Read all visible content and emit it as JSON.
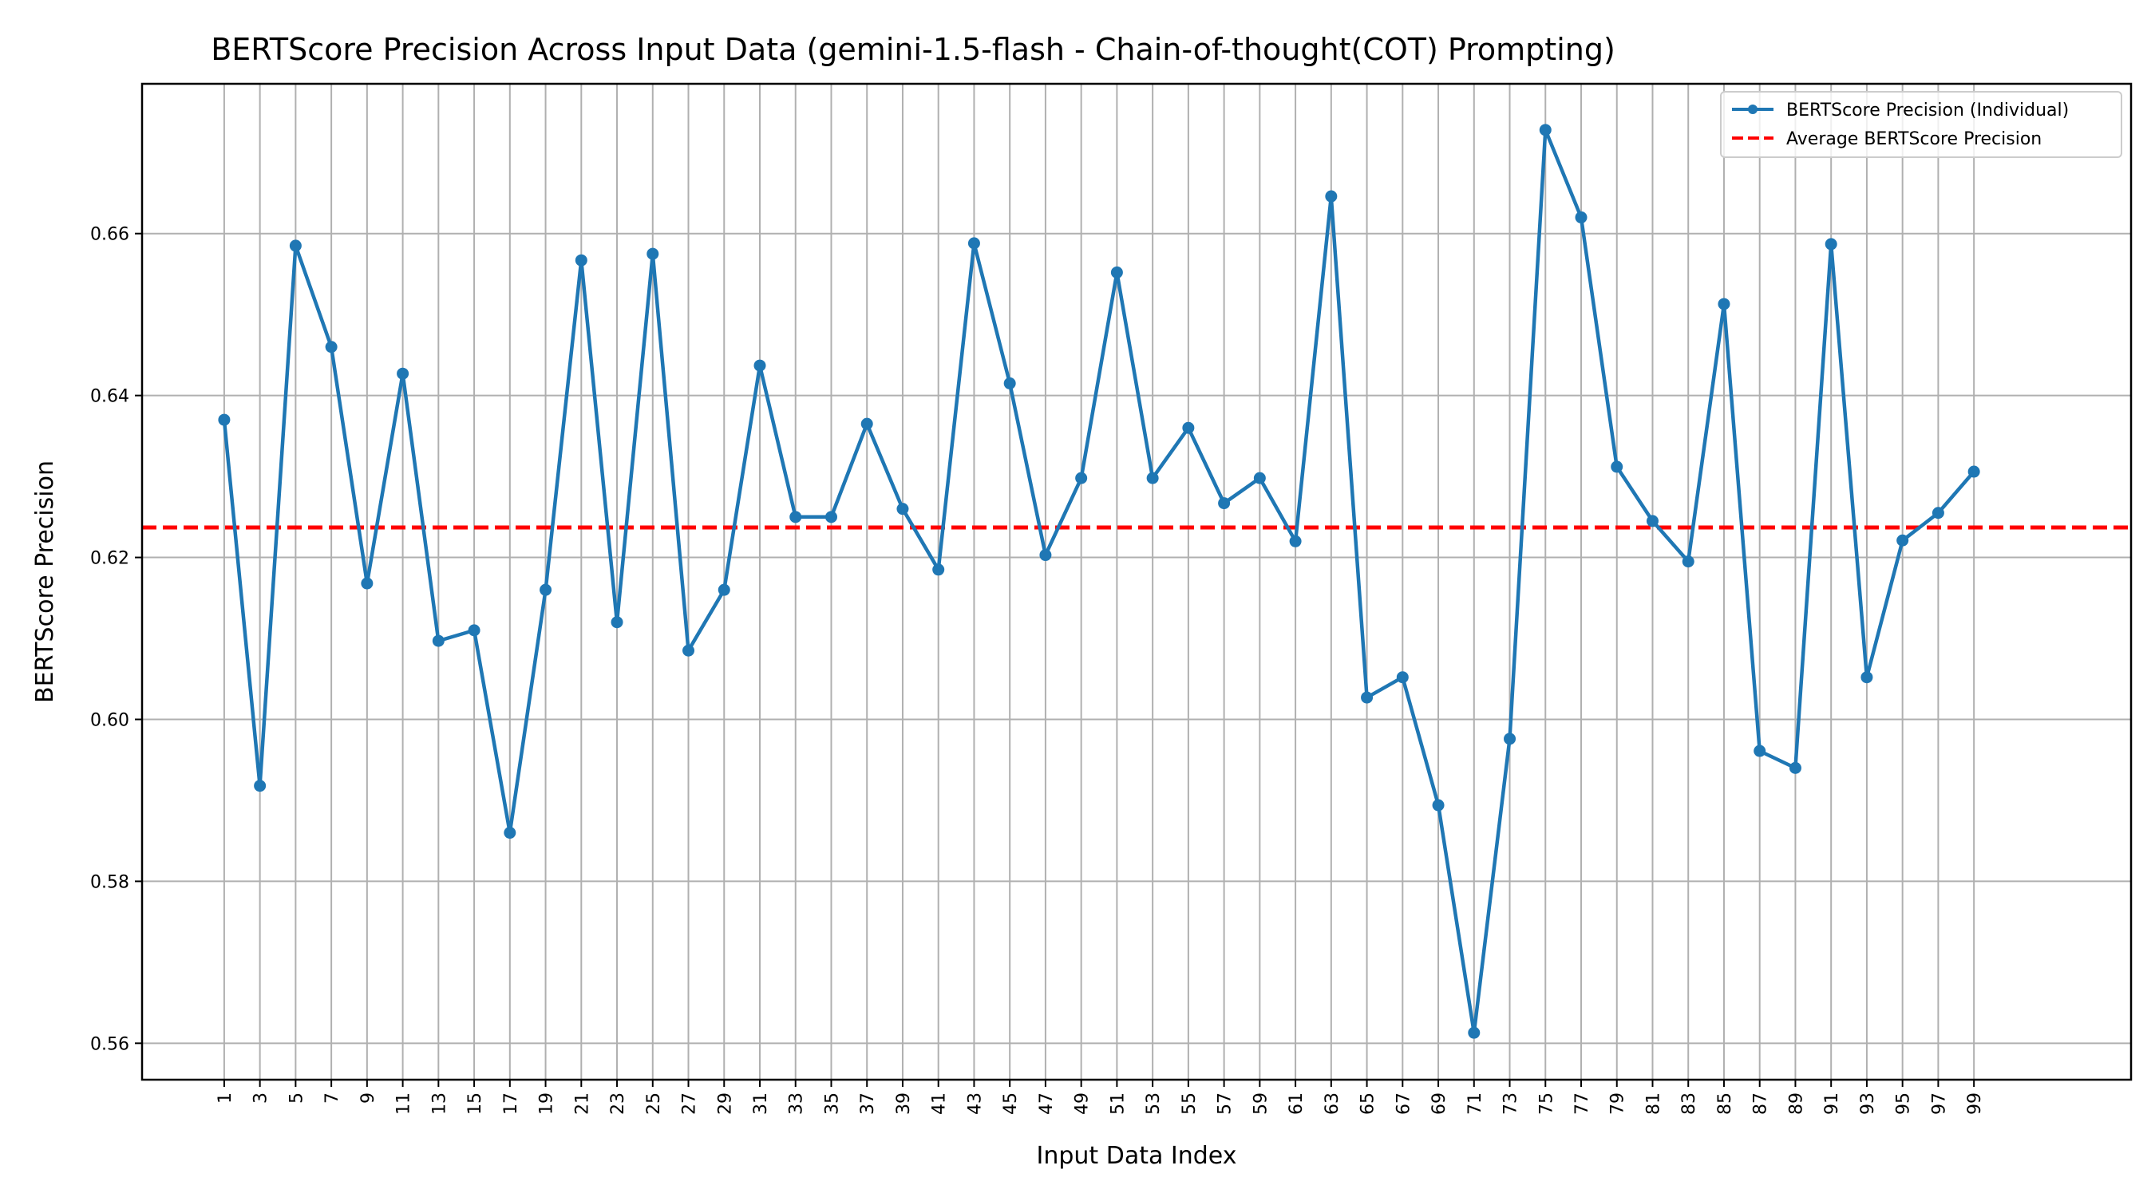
{
  "chart_data": {
    "type": "line",
    "title": "BERTScore Precision Across Input Data (gemini-1.5-flash - Chain-of-thought(COT) Prompting)",
    "xlabel": "Input Data Index",
    "ylabel": "BERTScore Precision",
    "x": [
      1,
      3,
      5,
      7,
      9,
      11,
      13,
      15,
      17,
      19,
      21,
      23,
      25,
      27,
      29,
      31,
      33,
      35,
      37,
      39,
      41,
      43,
      45,
      47,
      49,
      51,
      53,
      55,
      57,
      59,
      61,
      63,
      65,
      67,
      69,
      71,
      73,
      75,
      77,
      79,
      81,
      83,
      85,
      87,
      89,
      91,
      93,
      95,
      97,
      99
    ],
    "xticks": [
      "1",
      "3",
      "5",
      "7",
      "9",
      "11",
      "13",
      "15",
      "17",
      "19",
      "21",
      "23",
      "25",
      "27",
      "29",
      "31",
      "33",
      "35",
      "37",
      "39",
      "41",
      "43",
      "45",
      "47",
      "49",
      "51",
      "53",
      "55",
      "57",
      "59",
      "61",
      "63",
      "65",
      "67",
      "69",
      "71",
      "73",
      "75",
      "77",
      "79",
      "81",
      "83",
      "85",
      "87",
      "89",
      "91",
      "93",
      "95",
      "97",
      "99"
    ],
    "yticks": [
      "0.56",
      "0.58",
      "0.60",
      "0.62",
      "0.64",
      "0.66"
    ],
    "ylim": [
      0.5555,
      0.6785
    ],
    "grid": true,
    "legend_position": "top-right",
    "series": [
      {
        "name": "BERTScore Precision (Individual)",
        "color": "#1f77b4",
        "marker": "circle",
        "values": [
          0.637,
          0.5918,
          0.6585,
          0.646,
          0.6168,
          0.6427,
          0.6097,
          0.611,
          0.586,
          0.616,
          0.6567,
          0.612,
          0.6575,
          0.6085,
          0.616,
          0.6437,
          0.625,
          0.625,
          0.6365,
          0.626,
          0.6185,
          0.6588,
          0.6415,
          0.6203,
          0.6298,
          0.6552,
          0.6298,
          0.636,
          0.6267,
          0.6298,
          0.622,
          0.6646,
          0.6027,
          0.6052,
          0.5894,
          0.5613,
          0.5976,
          0.6728,
          0.662,
          0.6312,
          0.6245,
          0.6195,
          0.6513,
          0.5961,
          0.594,
          0.6587,
          0.6052,
          0.6221,
          0.6255,
          0.6306
        ]
      }
    ],
    "reference_lines": [
      {
        "name": "Average BERTScore Precision",
        "y": 0.6237,
        "color": "#ff0000",
        "style": "dashed"
      }
    ]
  }
}
